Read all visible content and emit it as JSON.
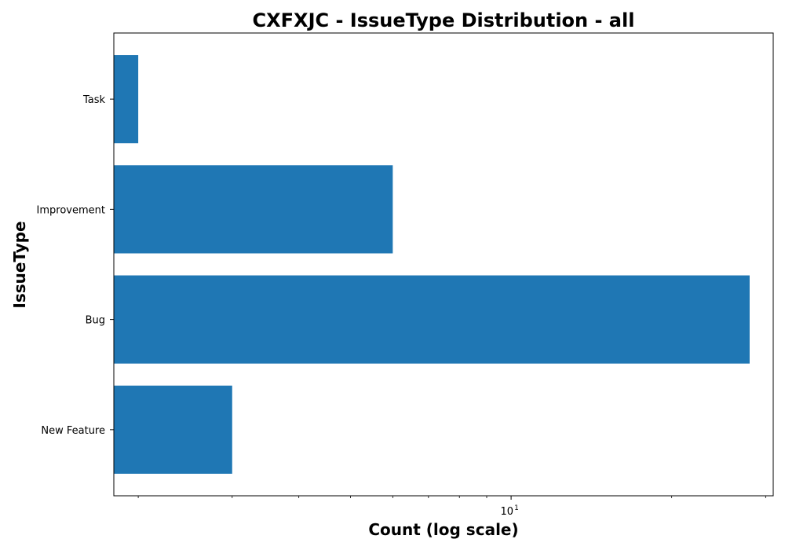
{
  "chart_data": {
    "type": "bar",
    "orientation": "horizontal",
    "title": "CXFXJC - IssueType Distribution - all",
    "xlabel": "Count (log scale)",
    "ylabel": "IssueType",
    "x_scale": "log",
    "xlim": [
      1.8,
      31
    ],
    "x_major_ticks": [
      {
        "base": "10",
        "exponent": "1",
        "value": 10
      }
    ],
    "categories": [
      "New Feature",
      "Bug",
      "Improvement",
      "Task"
    ],
    "values": [
      3,
      28,
      6,
      2
    ],
    "bar_color": "#1f77b4",
    "grid": false,
    "legend": "none"
  }
}
